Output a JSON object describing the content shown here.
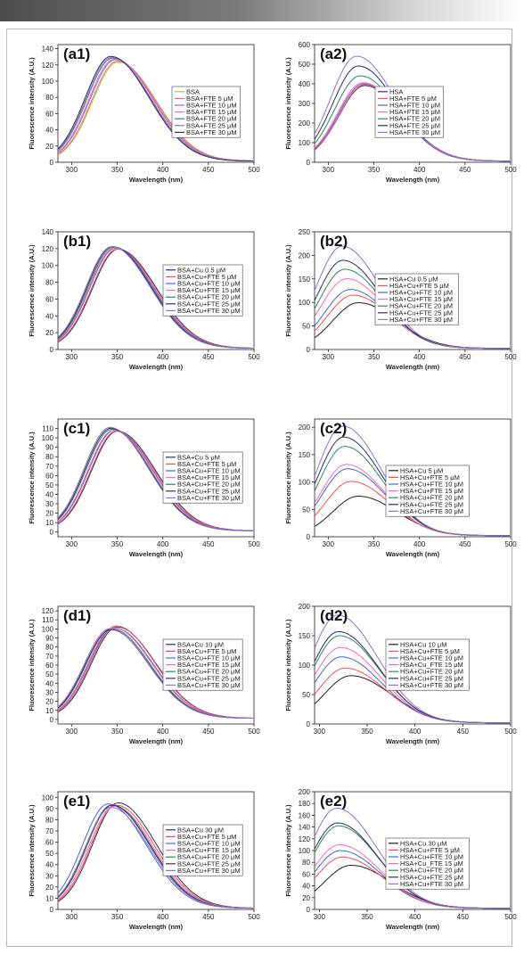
{
  "page": {
    "banner_color_left": "#4d4d4d",
    "frame_color": "#b8b8b8"
  },
  "chart_data": [
    {
      "id": "a1",
      "type": "line",
      "panel_label": "(a1)",
      "xlabel": "Wavelength (nm)",
      "ylabel": "Fluorescence intensity (A.U.)",
      "xlim": [
        285,
        500
      ],
      "ylim": [
        0,
        145
      ],
      "xticks": [
        300,
        350,
        400,
        450,
        500
      ],
      "yticks": [
        0,
        20,
        40,
        60,
        80,
        100,
        120,
        140
      ],
      "legend_position": "right",
      "series": [
        {
          "name": "BSA",
          "color": "#9acd32",
          "peak_x": 351,
          "peak_y": 122
        },
        {
          "name": "BSA+FTE 5 μM",
          "color": "#ff6b6b",
          "peak_x": 350,
          "peak_y": 123
        },
        {
          "name": "BSA+FTE 10 μM",
          "color": "#7b68ee",
          "peak_x": 348,
          "peak_y": 125
        },
        {
          "name": "BSA+FTE 15 μM",
          "color": "#ff69b4",
          "peak_x": 347,
          "peak_y": 126
        },
        {
          "name": "BSA+FTE 20 μM",
          "color": "#2e8b57",
          "peak_x": 345,
          "peak_y": 127
        },
        {
          "name": "BSA+FTE 25 μM",
          "color": "#9370db",
          "peak_x": 344,
          "peak_y": 128
        },
        {
          "name": "BSA+FTE 30 μM",
          "color": "#3b2a6b",
          "peak_x": 343,
          "peak_y": 129
        }
      ]
    },
    {
      "id": "a2",
      "type": "line",
      "panel_label": "(a2)",
      "xlabel": "Wavelength (nm)",
      "ylabel": "Fluorescence intensity (A.U.)",
      "xlim": [
        285,
        500
      ],
      "ylim": [
        0,
        600
      ],
      "xticks": [
        300,
        350,
        400,
        450,
        500
      ],
      "yticks": [
        0,
        100,
        200,
        300,
        400,
        500,
        600
      ],
      "legend_position": "right",
      "series": [
        {
          "name": "HSA",
          "color": "#3b2a6b",
          "peak_x": 340,
          "peak_y": 385
        },
        {
          "name": "HSA+FTE 5 μM",
          "color": "#ff5555",
          "peak_x": 340,
          "peak_y": 390
        },
        {
          "name": "HSA+FTE 10 μM",
          "color": "#4169e1",
          "peak_x": 339,
          "peak_y": 395
        },
        {
          "name": "HSA+FTE 15 μM",
          "color": "#ff69b4",
          "peak_x": 338,
          "peak_y": 400
        },
        {
          "name": "HSA+FTE 20 μM",
          "color": "#2e8b57",
          "peak_x": 335,
          "peak_y": 435
        },
        {
          "name": "HSA+FTE 25 μM",
          "color": "#2f2f5f",
          "peak_x": 333,
          "peak_y": 485
        },
        {
          "name": "HSA+FTE 30 μM",
          "color": "#9370db",
          "peak_x": 331,
          "peak_y": 535
        }
      ]
    },
    {
      "id": "b1",
      "type": "line",
      "panel_label": "(b1)",
      "xlabel": "Wavelength (nm)",
      "ylabel": "Fluorescence intensity (A.U.)",
      "xlim": [
        285,
        500
      ],
      "ylim": [
        0,
        140
      ],
      "xticks": [
        300,
        350,
        400,
        450,
        500
      ],
      "yticks": [
        0,
        20,
        40,
        60,
        80,
        100,
        120,
        140
      ],
      "legend_position": "right",
      "series": [
        {
          "name": "BSA+Cu 0.5 μM",
          "color": "#3b2a6b",
          "peak_x": 351,
          "peak_y": 118
        },
        {
          "name": "BSA+Cu+FTE 5 μM",
          "color": "#ff4d4d",
          "peak_x": 350,
          "peak_y": 118
        },
        {
          "name": "BSA+Cu+FTE 10 μM",
          "color": "#4169e1",
          "peak_x": 348,
          "peak_y": 119
        },
        {
          "name": "BSA+Cu+FTE 15 μM",
          "color": "#ff69b4",
          "peak_x": 347,
          "peak_y": 119
        },
        {
          "name": "BSA+Cu+FTE 20 μM",
          "color": "#2e8b57",
          "peak_x": 346,
          "peak_y": 120
        },
        {
          "name": "BSA+Cu+FTE 25 μM",
          "color": "#2f2f5f",
          "peak_x": 345,
          "peak_y": 121
        },
        {
          "name": "BSA+Cu+FTE 30 μM",
          "color": "#9370db",
          "peak_x": 344,
          "peak_y": 121
        }
      ]
    },
    {
      "id": "b2",
      "type": "line",
      "panel_label": "(b2)",
      "xlabel": "Wavelength (nm)",
      "ylabel": "Fluorescence intensity (A.U.)",
      "xlim": [
        285,
        500
      ],
      "ylim": [
        0,
        250
      ],
      "xticks": [
        300,
        350,
        400,
        450,
        500
      ],
      "yticks": [
        0,
        50,
        100,
        150,
        200,
        250
      ],
      "legend_position": "right",
      "series": [
        {
          "name": "HSA+Cu 0.5 μM",
          "color": "#222222",
          "peak_x": 333,
          "peak_y": 97
        },
        {
          "name": "HSA+Cu+FTE 5 μM",
          "color": "#ff4d4d",
          "peak_x": 327,
          "peak_y": 113
        },
        {
          "name": "HSA+Cu+FTE 10 μM",
          "color": "#4169e1",
          "peak_x": 324,
          "peak_y": 125
        },
        {
          "name": "HSA+Cu+FTE 15 μM",
          "color": "#ff69b4",
          "peak_x": 320,
          "peak_y": 148
        },
        {
          "name": "HSA+Cu+FTE 20 μM",
          "color": "#2e8b57",
          "peak_x": 318,
          "peak_y": 168
        },
        {
          "name": "HSA+Cu+FTE  25 μM",
          "color": "#2f2f5f",
          "peak_x": 316,
          "peak_y": 187
        },
        {
          "name": "HSA+Cu+FTE 30 μM",
          "color": "#9370db",
          "peak_x": 315,
          "peak_y": 217
        }
      ]
    },
    {
      "id": "c1",
      "type": "line",
      "panel_label": "(c1)",
      "xlabel": "Wavelength (nm)",
      "ylabel": "Fluorescence intensity (A.U.)",
      "xlim": [
        285,
        500
      ],
      "ylim": [
        -5,
        120
      ],
      "xticks": [
        300,
        350,
        400,
        450,
        500
      ],
      "yticks": [
        0,
        10,
        20,
        30,
        40,
        50,
        60,
        70,
        80,
        90,
        100,
        110
      ],
      "legend_position": "right",
      "series": [
        {
          "name": "BSA+Cu 5 μM",
          "color": "#2f2f5f",
          "peak_x": 350,
          "peak_y": 106
        },
        {
          "name": "BSA+Cu+FTE 5 μM",
          "color": "#ff4d4d",
          "peak_x": 349,
          "peak_y": 106
        },
        {
          "name": "BSA+Cu+FTE 10 μM",
          "color": "#4169e1",
          "peak_x": 347,
          "peak_y": 107
        },
        {
          "name": "BSA+Cu+FTE 15 μM",
          "color": "#ff69b4",
          "peak_x": 346,
          "peak_y": 107
        },
        {
          "name": "BSA+Cu+FTE 20 μM",
          "color": "#2e8b57",
          "peak_x": 344,
          "peak_y": 108
        },
        {
          "name": "BSA+Cu+FTE 25 μM",
          "color": "#3b2a6b",
          "peak_x": 343,
          "peak_y": 109
        },
        {
          "name": "BSA+Cu+FTE 30 μM",
          "color": "#9370db",
          "peak_x": 342,
          "peak_y": 110
        }
      ]
    },
    {
      "id": "c2",
      "type": "line",
      "panel_label": "(c2)",
      "xlabel": "Wavelength (nm)",
      "ylabel": "Fluorescence intensity (A.U.)",
      "xlim": [
        285,
        500
      ],
      "ylim": [
        0,
        215
      ],
      "xticks": [
        300,
        350,
        400,
        450,
        500
      ],
      "yticks": [
        0,
        50,
        100,
        150,
        200
      ],
      "legend_position": "right",
      "series": [
        {
          "name": "HSA+Cu 5 μM",
          "color": "#222222",
          "peak_x": 333,
          "peak_y": 72
        },
        {
          "name": "HSA+Cu+FTE 5 μM",
          "color": "#ff4d4d",
          "peak_x": 325,
          "peak_y": 99
        },
        {
          "name": "HSA+Cu+FTE 10 μM",
          "color": "#4169e1",
          "peak_x": 321,
          "peak_y": 122
        },
        {
          "name": "HSA+Cu+FTE 15 μM",
          "color": "#ff69b4",
          "peak_x": 320,
          "peak_y": 130
        },
        {
          "name": "HSA+Cu+FTE 20 μM",
          "color": "#2e8b57",
          "peak_x": 318,
          "peak_y": 163
        },
        {
          "name": "HSA+Cu+FTE  25 μM",
          "color": "#2f2f5f",
          "peak_x": 317,
          "peak_y": 180
        },
        {
          "name": "HSA+Cu+FTE 30 μM",
          "color": "#9370db",
          "peak_x": 316,
          "peak_y": 200
        }
      ]
    },
    {
      "id": "d1",
      "type": "line",
      "panel_label": "(d1)",
      "xlabel": "Wavelength (nm)",
      "ylabel": "Fluorescence intensity (A.U.)",
      "xlim": [
        285,
        500
      ],
      "ylim": [
        -5,
        125
      ],
      "xticks": [
        300,
        350,
        400,
        450,
        500
      ],
      "yticks": [
        0,
        10,
        20,
        30,
        40,
        50,
        60,
        70,
        80,
        90,
        100,
        110,
        120
      ],
      "legend_position": "right",
      "series": [
        {
          "name": "BSA+Cu 10 μM",
          "color": "#2f2f5f",
          "peak_x": 350,
          "peak_y": 101
        },
        {
          "name": "BSA+Cu+FTE 5 μM",
          "color": "#ff4d4d",
          "peak_x": 349,
          "peak_y": 102
        },
        {
          "name": "BSA+Cu+FTE 10 μM",
          "color": "#4169e1",
          "peak_x": 347,
          "peak_y": 100
        },
        {
          "name": "BSA+Cu+FTE 15 μM",
          "color": "#ff69b4",
          "peak_x": 346,
          "peak_y": 100
        },
        {
          "name": "BSA+Cu+FTE 20 μM",
          "color": "#2e8b57",
          "peak_x": 344,
          "peak_y": 99
        },
        {
          "name": "BSA+Cu+FTE 25 μM",
          "color": "#3b2a6b",
          "peak_x": 343,
          "peak_y": 98
        },
        {
          "name": "BSA+Cu+FTE 30 μM",
          "color": "#9370db",
          "peak_x": 342,
          "peak_y": 99
        }
      ]
    },
    {
      "id": "d2",
      "type": "line",
      "panel_label": "(d2)",
      "xlabel": "Wavelength (nm)",
      "ylabel": "Fluorescence intensity (A.U.)",
      "xlim": [
        295,
        500
      ],
      "ylim": [
        0,
        200
      ],
      "xticks": [
        300,
        350,
        400,
        450,
        500
      ],
      "yticks": [
        0,
        50,
        100,
        150,
        200
      ],
      "legend_position": "right",
      "series": [
        {
          "name": "HSA+Cu 10 μM",
          "color": "#222222",
          "peak_x": 333,
          "peak_y": 80
        },
        {
          "name": "HSA+Cu+FTE 5 μM",
          "color": "#ff4d4d",
          "peak_x": 327,
          "peak_y": 93
        },
        {
          "name": "HSA+Cu+FTE 10 μM",
          "color": "#4169e1",
          "peak_x": 323,
          "peak_y": 112
        },
        {
          "name": "HSA+Cu_FTE 15 μM",
          "color": "#ff69b4",
          "peak_x": 322,
          "peak_y": 128
        },
        {
          "name": "HSA+Cu+FTE 20 μM",
          "color": "#2e8b57",
          "peak_x": 321,
          "peak_y": 148
        },
        {
          "name": "HSA+Cu+FTE  25 μM",
          "color": "#2f2f5f",
          "peak_x": 320,
          "peak_y": 155
        },
        {
          "name": "HSA+Cu+FTE 30 μM",
          "color": "#9370db",
          "peak_x": 319,
          "peak_y": 183
        }
      ]
    },
    {
      "id": "e1",
      "type": "line",
      "panel_label": "(e1)",
      "xlabel": "Wavelength (nm)",
      "ylabel": "Fluorescence intensity (A.U.)",
      "xlim": [
        285,
        500
      ],
      "ylim": [
        0,
        105
      ],
      "xticks": [
        300,
        350,
        400,
        450,
        500
      ],
      "yticks": [
        0,
        10,
        20,
        30,
        40,
        50,
        60,
        70,
        80,
        90,
        100
      ],
      "legend_position": "right",
      "series": [
        {
          "name": "BSA+Cu 30 μM",
          "color": "#2f2f5f",
          "peak_x": 351,
          "peak_y": 94
        },
        {
          "name": "BSA+Cu+FTE 5 μM",
          "color": "#ff4d4d",
          "peak_x": 349,
          "peak_y": 92
        },
        {
          "name": "BSA+Cu+FTE 10 μM",
          "color": "#4169e1",
          "peak_x": 340,
          "peak_y": 93
        },
        {
          "name": "BSA+Cu+FTE 15 μM",
          "color": "#ff69b4",
          "peak_x": 347,
          "peak_y": 91
        },
        {
          "name": "BSA+Cu+FTE 20 μM",
          "color": "#2e8b57",
          "peak_x": 345,
          "peak_y": 92
        },
        {
          "name": "BSA+Cu+FTE 25 μM",
          "color": "#3b2a6b",
          "peak_x": 344,
          "peak_y": 92
        },
        {
          "name": "BSA+Cu+FTE 30 μM",
          "color": "#9370db",
          "peak_x": 343,
          "peak_y": 90
        }
      ]
    },
    {
      "id": "e2",
      "type": "line",
      "panel_label": "(e2)",
      "xlabel": "Wavelength (nm)",
      "ylabel": "Fluorescence intensity (A.U.)",
      "xlim": [
        295,
        500
      ],
      "ylim": [
        0,
        200
      ],
      "xticks": [
        300,
        350,
        400,
        450,
        500
      ],
      "yticks": [
        0,
        20,
        40,
        60,
        80,
        100,
        120,
        140,
        160,
        180,
        200
      ],
      "legend_position": "right",
      "series": [
        {
          "name": "HSA+Cu 30 μM",
          "color": "#222222",
          "peak_x": 333,
          "peak_y": 73
        },
        {
          "name": "HSA+Cu+FTE 5 μM",
          "color": "#ff4d4d",
          "peak_x": 324,
          "peak_y": 87
        },
        {
          "name": "HSA+Cu+FTE 10 μM",
          "color": "#4169e1",
          "peak_x": 322,
          "peak_y": 98
        },
        {
          "name": "HSA+Cu_FTE 15 μM",
          "color": "#ff69b4",
          "peak_x": 321,
          "peak_y": 108
        },
        {
          "name": "HSA+Cu+FTE 20 μM",
          "color": "#2e8b57",
          "peak_x": 320,
          "peak_y": 140
        },
        {
          "name": "HSA+Cu+FTE  25 μM",
          "color": "#2f2f5f",
          "peak_x": 319,
          "peak_y": 145
        },
        {
          "name": "HSA+Cu+FTE 30 μM",
          "color": "#9370db",
          "peak_x": 318,
          "peak_y": 170
        }
      ]
    }
  ]
}
